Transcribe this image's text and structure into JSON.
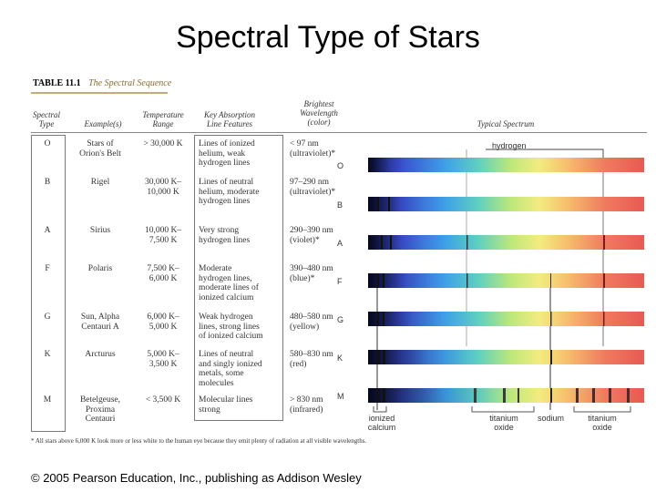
{
  "slide": {
    "title": "Spectral Type of Stars"
  },
  "table": {
    "number": "TABLE 11.1",
    "name": "The Spectral Sequence",
    "headers": {
      "type": [
        "Spectral",
        "Type"
      ],
      "examples": [
        "Example(s)"
      ],
      "temperature": [
        "Temperature",
        "Range"
      ],
      "absorption": [
        "Key Absorption",
        "Line Features"
      ],
      "brightest": [
        "Brightest",
        "Wavelength",
        "(color)"
      ],
      "spectrum": [
        "Typical Spectrum"
      ]
    },
    "rows": [
      {
        "type": "O",
        "examples": [
          "Stars of",
          "Orion's Belt"
        ],
        "temperature": [
          "> 30,000 K"
        ],
        "absorption": [
          "Lines of ionized",
          "helium, weak",
          "hydrogen lines"
        ],
        "brightest": [
          "< 97 nm",
          "(ultraviolet)*"
        ]
      },
      {
        "type": "B",
        "examples": [
          "Rigel"
        ],
        "temperature": [
          "30,000 K–",
          "10,000 K"
        ],
        "absorption": [
          "Lines of neutral",
          "helium, moderate",
          "hydrogen lines"
        ],
        "brightest": [
          "97–290 nm",
          "(ultraviolet)*"
        ]
      },
      {
        "type": "A",
        "examples": [
          "Sirius"
        ],
        "temperature": [
          "10,000 K–",
          "7,500 K"
        ],
        "absorption": [
          "Very strong",
          "hydrogen lines"
        ],
        "brightest": [
          "290–390 nm",
          "(violet)*"
        ]
      },
      {
        "type": "F",
        "examples": [
          "Polaris"
        ],
        "temperature": [
          "7,500 K–",
          "6,000 K"
        ],
        "absorption": [
          "Moderate",
          "hydrogen lines,",
          "moderate lines of",
          "ionized calcium"
        ],
        "brightest": [
          "390–480 nm",
          "(blue)*"
        ]
      },
      {
        "type": "G",
        "examples": [
          "Sun, Alpha",
          "Centauri A"
        ],
        "temperature": [
          "6,000 K–",
          "5,000 K"
        ],
        "absorption": [
          "Weak hydrogen",
          "lines, strong lines",
          "of ionized calcium"
        ],
        "brightest": [
          "480–580 nm",
          "(yellow)"
        ]
      },
      {
        "type": "K",
        "examples": [
          "Arcturus"
        ],
        "temperature": [
          "5,000 K–",
          "3,500 K"
        ],
        "absorption": [
          "Lines of neutral",
          "and singly ionized",
          "metals, some",
          "molecules"
        ],
        "brightest": [
          "580–830 nm",
          "(red)"
        ]
      },
      {
        "type": "M",
        "examples": [
          "Betelgeuse,",
          "Proxima",
          "Centauri"
        ],
        "temperature": [
          "< 3,500 K"
        ],
        "absorption": [
          "Molecular lines",
          "strong"
        ],
        "brightest": [
          "> 830 nm",
          "(infrared)"
        ]
      }
    ],
    "spectrum_labels": {
      "hydrogen": "hydrogen",
      "ionized_calcium": [
        "ionized",
        "calcium"
      ],
      "titanium_oxide_1": [
        "titanium",
        "oxide"
      ],
      "sodium": "sodium",
      "titanium_oxide_2": [
        "titanium",
        "oxide"
      ]
    },
    "footnote": "* All stars above 6,000 K look more or less white to the human eye because they emit plenty of radiation at all visible wavelengths."
  },
  "copyright": "© 2005 Pearson Education, Inc., publishing as Addison Wesley"
}
